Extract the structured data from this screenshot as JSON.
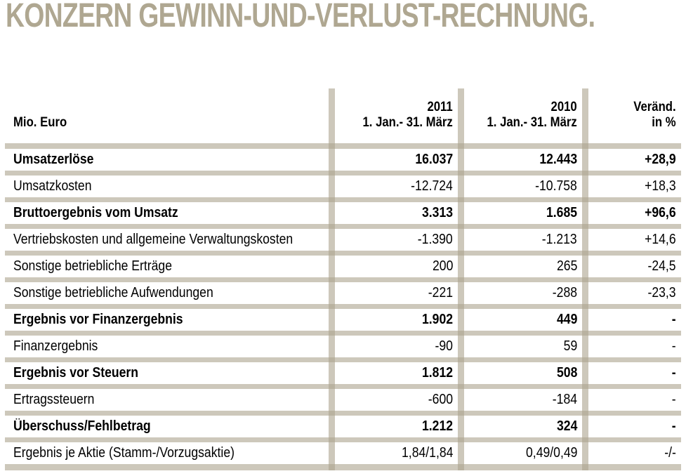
{
  "title": "KONZERN GEWINN-UND-VERLUST-RECHNUNG.",
  "colors": {
    "title": "#AFA791",
    "separator": "#ACA38E",
    "separator_rendered": "#CCC6B7",
    "separator_overlap": "#B9B2A0",
    "text": "#000000",
    "background": "#FFFFFF"
  },
  "table": {
    "unit_label": "Mio. Euro",
    "columns": [
      {
        "year": "2011",
        "period": "1. Jan.- 31. März"
      },
      {
        "year": "2010",
        "period": "1. Jan.- 31. März"
      },
      {
        "year": "Veränd.",
        "period": "in %"
      }
    ],
    "rows": [
      {
        "label": "Umsatzerlöse",
        "v2011": "16.037",
        "v2010": "12.443",
        "change": "+28,9",
        "bold": true
      },
      {
        "label": "Umsatzkosten",
        "v2011": "-12.724",
        "v2010": "-10.758",
        "change": "+18,3",
        "bold": false
      },
      {
        "label": "Bruttoergebnis vom Umsatz",
        "v2011": "3.313",
        "v2010": "1.685",
        "change": "+96,6",
        "bold": true
      },
      {
        "label": "Vertriebskosten und allgemeine Verwaltungskosten",
        "v2011": "-1.390",
        "v2010": "-1.213",
        "change": "+14,6",
        "bold": false
      },
      {
        "label": "Sonstige betriebliche Erträge",
        "v2011": "200",
        "v2010": "265",
        "change": "-24,5",
        "bold": false
      },
      {
        "label": "Sonstige betriebliche Aufwendungen",
        "v2011": "-221",
        "v2010": "-288",
        "change": "-23,3",
        "bold": false
      },
      {
        "label": "Ergebnis vor Finanzergebnis",
        "v2011": "1.902",
        "v2010": "449",
        "change": "-",
        "bold": true
      },
      {
        "label": "Finanzergebnis",
        "v2011": "-90",
        "v2010": "59",
        "change": "-",
        "bold": false
      },
      {
        "label": "Ergebnis vor Steuern",
        "v2011": "1.812",
        "v2010": "508",
        "change": "-",
        "bold": true
      },
      {
        "label": "Ertragssteuern",
        "v2011": "-600",
        "v2010": "-184",
        "change": "-",
        "bold": false
      },
      {
        "label": "Überschuss/Fehlbetrag",
        "v2011": "1.212",
        "v2010": "324",
        "change": "-",
        "bold": true
      },
      {
        "label": "Ergebnis je Aktie (Stamm-/Vorzugsaktie)",
        "v2011": "1,84/1,84",
        "v2010": "0,49/0,49",
        "change": "-/-",
        "bold": false
      }
    ]
  }
}
